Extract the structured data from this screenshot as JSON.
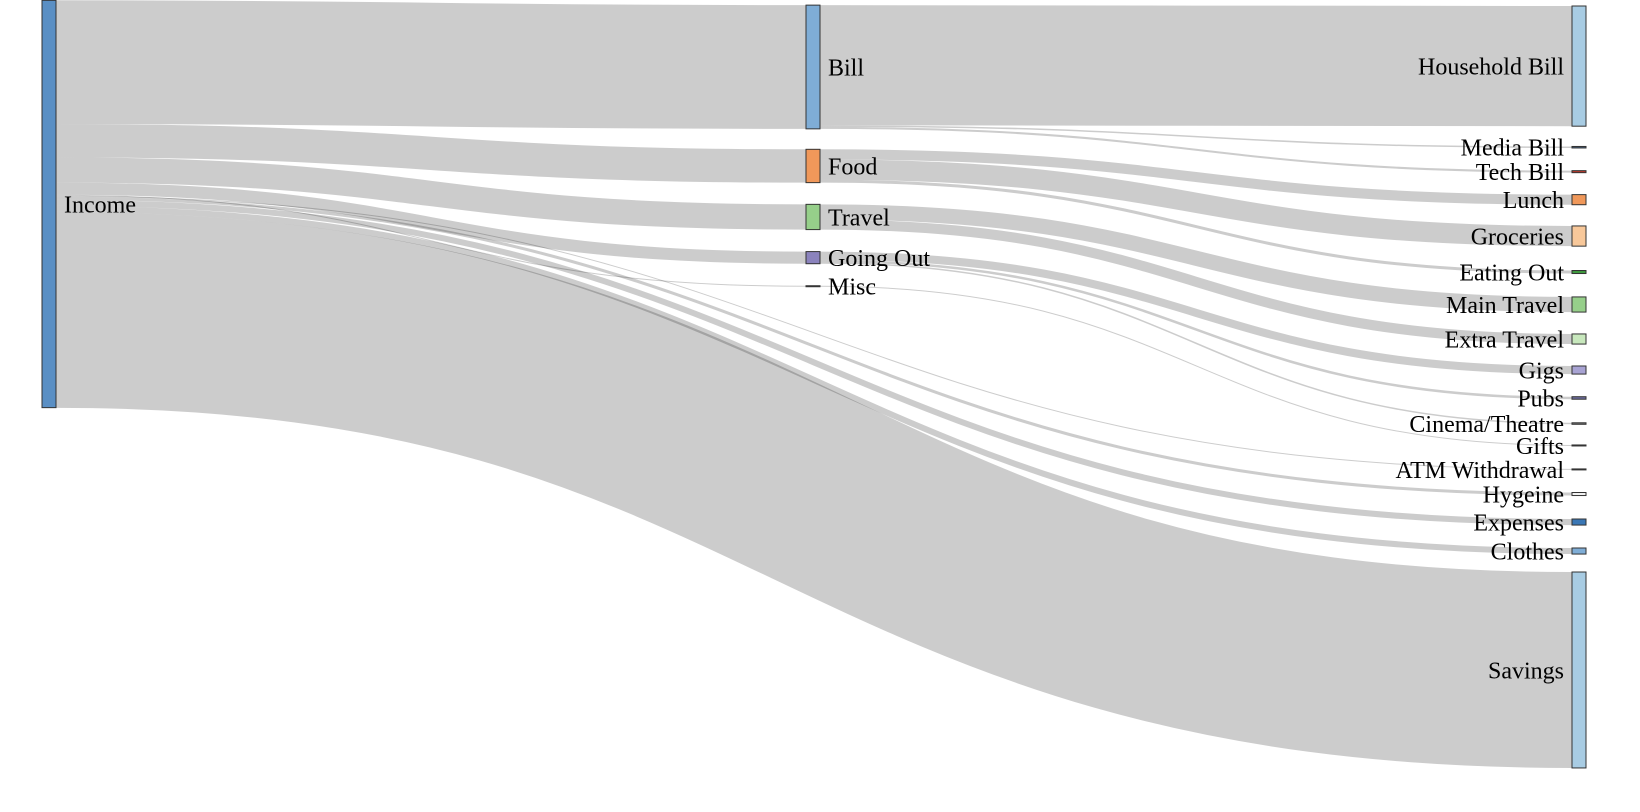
{
  "chart_data": {
    "type": "sankey",
    "units": "",
    "nodes": [
      {
        "id": "income",
        "label": "Income",
        "color": "#5a8fc4",
        "column": 0
      },
      {
        "id": "bill",
        "label": "Bill",
        "color": "#7fadd6",
        "column": 1
      },
      {
        "id": "food",
        "label": "Food",
        "color": "#f0985a",
        "column": 1
      },
      {
        "id": "travel",
        "label": "Travel",
        "color": "#96cf8a",
        "column": 1
      },
      {
        "id": "goingout",
        "label": "Going Out",
        "color": "#8b83bd",
        "column": 1
      },
      {
        "id": "misc",
        "label": "Misc",
        "color": "#9a9a9a",
        "column": 1
      },
      {
        "id": "household",
        "label": "Household Bill",
        "color": "#a8cce3",
        "column": 2
      },
      {
        "id": "media",
        "label": "Media Bill",
        "color": "#4a6a88",
        "column": 2
      },
      {
        "id": "tech",
        "label": "Tech Bill",
        "color": "#c0392b",
        "column": 2
      },
      {
        "id": "lunch",
        "label": "Lunch",
        "color": "#f0985a",
        "column": 2
      },
      {
        "id": "groceries",
        "label": "Groceries",
        "color": "#f8c89a",
        "column": 2
      },
      {
        "id": "eatingout",
        "label": "Eating Out",
        "color": "#3f9a3f",
        "column": 2
      },
      {
        "id": "maintravel",
        "label": "Main Travel",
        "color": "#96cf8a",
        "column": 2
      },
      {
        "id": "extratravel",
        "label": "Extra Travel",
        "color": "#c8e8bd",
        "column": 2
      },
      {
        "id": "gigs",
        "label": "Gigs",
        "color": "#a8a3d3",
        "column": 2
      },
      {
        "id": "pubs",
        "label": "Pubs",
        "color": "#6b6b9e",
        "column": 2
      },
      {
        "id": "cinema",
        "label": "Cinema/Theatre",
        "color": "#777777",
        "column": 2
      },
      {
        "id": "gifts",
        "label": "Gifts",
        "color": "#bbbbbb",
        "column": 2
      },
      {
        "id": "atm",
        "label": "ATM Withdrawal",
        "color": "#dddddd",
        "column": 2
      },
      {
        "id": "hygeine",
        "label": "Hygeine",
        "color": "#f2f2f2",
        "column": 2
      },
      {
        "id": "expenses",
        "label": "Expenses",
        "color": "#3a77b5",
        "column": 2
      },
      {
        "id": "clothes",
        "label": "Clothes",
        "color": "#7fadd6",
        "column": 2
      },
      {
        "id": "savings",
        "label": "Savings",
        "color": "#a8cce3",
        "column": 2
      }
    ],
    "links": [
      {
        "source": "income",
        "target": "bill",
        "value": 1225
      },
      {
        "source": "income",
        "target": "food",
        "value": 330
      },
      {
        "source": "income",
        "target": "travel",
        "value": 250
      },
      {
        "source": "income",
        "target": "goingout",
        "value": 120
      },
      {
        "source": "income",
        "target": "misc",
        "value": 10
      },
      {
        "source": "income",
        "target": "atm",
        "value": 8
      },
      {
        "source": "income",
        "target": "hygeine",
        "value": 30
      },
      {
        "source": "income",
        "target": "expenses",
        "value": 60
      },
      {
        "source": "income",
        "target": "clothes",
        "value": 60
      },
      {
        "source": "income",
        "target": "savings",
        "value": 1940
      },
      {
        "source": "bill",
        "target": "household",
        "value": 1190
      },
      {
        "source": "bill",
        "target": "media",
        "value": 15
      },
      {
        "source": "bill",
        "target": "tech",
        "value": 20
      },
      {
        "source": "food",
        "target": "lunch",
        "value": 100
      },
      {
        "source": "food",
        "target": "groceries",
        "value": 200
      },
      {
        "source": "food",
        "target": "eatingout",
        "value": 30
      },
      {
        "source": "travel",
        "target": "maintravel",
        "value": 150
      },
      {
        "source": "travel",
        "target": "extratravel",
        "value": 100
      },
      {
        "source": "goingout",
        "target": "gigs",
        "value": 80
      },
      {
        "source": "goingout",
        "target": "pubs",
        "value": 25
      },
      {
        "source": "goingout",
        "target": "cinema",
        "value": 15
      },
      {
        "source": "misc",
        "target": "gifts",
        "value": 10
      }
    ]
  }
}
